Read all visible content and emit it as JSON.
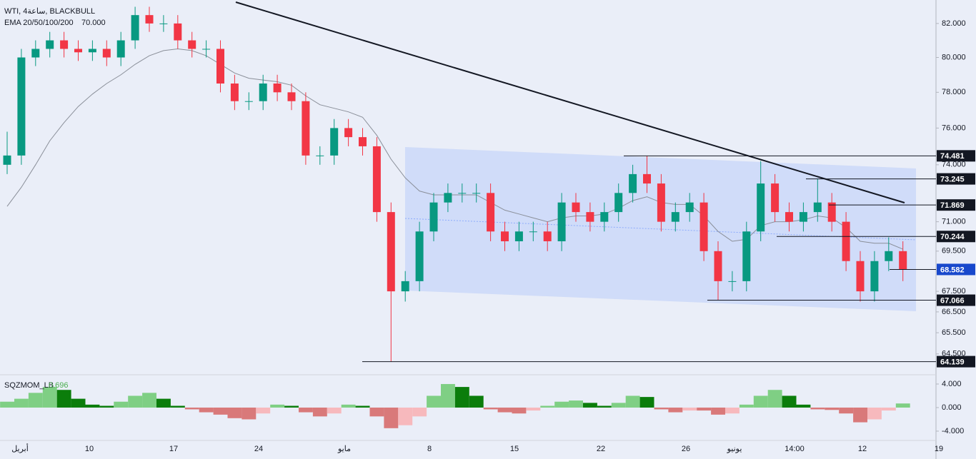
{
  "header": {
    "symbol": "WTI, 4ساعة, BLACKBULL",
    "ema": "EMA 20/50/100/200",
    "ema_value": "70.000"
  },
  "x_labels": [
    "أبريل",
    "10",
    "17",
    "24",
    "مايو",
    "8",
    "15",
    "22",
    "26",
    "يونيو",
    "14:00",
    "12",
    "19"
  ],
  "chart_data": [
    {
      "type": "candlestick",
      "log": true,
      "up_color": "#089981",
      "down_color": "#f23645",
      "open": [
        74,
        74.5,
        80,
        80.5,
        81,
        80.5,
        80.3,
        80.5,
        80,
        81,
        82.5,
        82,
        82,
        81,
        80.5,
        80.5,
        78.5,
        77.5,
        77.5,
        78.5,
        78,
        77.5,
        74.5,
        74.5,
        76,
        75.5,
        75,
        71.5,
        67.5,
        68,
        70.5,
        72,
        72.5,
        72.5,
        72.5,
        70.5,
        70,
        70.5,
        70.5,
        70,
        72,
        71.5,
        71,
        71.5,
        72.5,
        73.5,
        73,
        71,
        71.5,
        72,
        69.5,
        68,
        68,
        70.5,
        73,
        71.5,
        71,
        71.5,
        72,
        71,
        69,
        67.5,
        69,
        69.5
      ],
      "high": [
        75.8,
        80.5,
        81,
        81.5,
        81.5,
        81,
        81,
        81,
        81.5,
        83,
        83,
        82.5,
        82.5,
        81.5,
        81,
        81,
        79,
        78,
        79,
        79,
        78.5,
        78,
        75,
        76.5,
        76.5,
        76,
        75.5,
        72,
        68.5,
        71,
        72.5,
        73,
        73,
        73,
        73,
        71,
        71,
        71,
        71,
        72.5,
        72.5,
        72,
        72,
        73,
        74,
        74.481,
        73.5,
        72,
        72.5,
        72.5,
        70,
        68.5,
        71,
        74.2,
        73.5,
        72,
        72,
        73.245,
        72.5,
        71.5,
        69.5,
        69.5,
        70.2,
        70
      ],
      "low": [
        73.5,
        74,
        79.5,
        80,
        80,
        79.8,
        79.8,
        79.5,
        79.5,
        80.5,
        81.5,
        81.5,
        80.5,
        80,
        80,
        78,
        77,
        77,
        77,
        77.5,
        77,
        74,
        74,
        74,
        75,
        74.5,
        71,
        64.139,
        67,
        67.5,
        70,
        71.5,
        72,
        72,
        70,
        69.5,
        69.5,
        70,
        69.5,
        69.5,
        71,
        70.5,
        70.5,
        71,
        72,
        72.5,
        70.5,
        70.5,
        71,
        69,
        67.066,
        67.5,
        67.5,
        70,
        71,
        70.5,
        70.5,
        71,
        70.5,
        68.5,
        67,
        67,
        68.5,
        68
      ],
      "close": [
        74.5,
        80,
        80.5,
        81,
        80.5,
        80.3,
        80.5,
        80,
        81,
        82.5,
        82,
        82,
        81,
        80.5,
        80.5,
        78.5,
        77.5,
        77.5,
        78.5,
        78,
        77.5,
        74.5,
        74.5,
        76,
        75.5,
        75,
        71.5,
        67.5,
        68,
        70.5,
        72,
        72.5,
        72.5,
        72.5,
        70.5,
        70,
        70.5,
        70.5,
        70,
        72,
        71.5,
        71,
        71.5,
        72.5,
        73.5,
        73,
        71,
        71.5,
        72,
        69.5,
        68,
        68,
        70.5,
        73,
        71.5,
        71,
        71.5,
        72,
        71,
        69,
        67.5,
        69,
        69.5,
        68.582
      ],
      "ema": {
        "color": "#8a8f99",
        "values": [
          71.8,
          72.8,
          74,
          75.3,
          76.3,
          77.2,
          77.9,
          78.5,
          79,
          79.6,
          80.1,
          80.4,
          80.5,
          80.4,
          80.1,
          79.6,
          79.1,
          78.8,
          78.7,
          78.6,
          78.4,
          77.8,
          77.3,
          77.1,
          76.9,
          76.6,
          75.6,
          74.3,
          73.3,
          72.6,
          72.4,
          72.4,
          72.4,
          72.4,
          72,
          71.6,
          71.4,
          71.2,
          71,
          71.2,
          71.3,
          71.3,
          71.4,
          71.7,
          72.1,
          72.3,
          72,
          71.9,
          71.9,
          71.3,
          70.5,
          70,
          70.1,
          70.8,
          71,
          71,
          71.1,
          71.3,
          71.2,
          70.7,
          70,
          69.9,
          69.9,
          69.6
        ]
      },
      "levels": [
        74.481,
        73.245,
        71.869,
        70.244,
        67.066,
        64.139
      ],
      "ylim": [
        63.53,
        83.41
      ],
      "yticks": [
        {
          "value": 82,
          "label": "82.000"
        },
        {
          "value": 80,
          "label": "80.000"
        },
        {
          "value": 78,
          "label": "78.000"
        },
        {
          "value": 76,
          "label": "76.000"
        },
        {
          "value": 74,
          "label": "74.000"
        },
        {
          "value": 71,
          "label": "71.000"
        },
        {
          "value": 69.5,
          "label": "69.500"
        },
        {
          "value": 67.5,
          "label": "67.500"
        },
        {
          "value": 66.5,
          "label": "66.500"
        },
        {
          "value": 65.5,
          "label": "65.500"
        },
        {
          "value": 64.5,
          "label": "64.500"
        }
      ]
    },
    {
      "type": "histogram",
      "title": "SQZMOM_LB",
      "colors": {
        "pos_up": "#7fcf84",
        "pos_down": "#0b7d0b",
        "neg_down": "#d9797a",
        "neg_up": "#f7b9bd"
      },
      "values": [
        1,
        1.5,
        2.5,
        3.5,
        3,
        1.5,
        0.5,
        0.3,
        1,
        2,
        2.5,
        1.5,
        0.3,
        -0.3,
        -0.8,
        -1.2,
        -1.8,
        -2,
        -1,
        0.5,
        0.3,
        -0.8,
        -1.5,
        -1,
        0.5,
        0.3,
        -1.5,
        -3.5,
        -3,
        -1.5,
        2,
        4,
        3.5,
        2,
        -0.3,
        -0.8,
        -1,
        -0.5,
        0.3,
        1,
        1.2,
        0.8,
        0.3,
        0.8,
        2,
        1.8,
        -0.3,
        -0.8,
        -0.5,
        -0.5,
        -1.2,
        -1,
        0.5,
        2,
        3,
        2,
        0.5,
        -0.3,
        -0.4,
        -1,
        -2.5,
        -2,
        -0.5,
        0.696
      ],
      "ylim": [
        -5.58,
        5.45
      ],
      "yticks": [
        {
          "value": 4,
          "label": "4.000"
        },
        {
          "value": 0,
          "label": "0.000"
        },
        {
          "value": -4,
          "label": "-4.000"
        }
      ]
    }
  ]
}
